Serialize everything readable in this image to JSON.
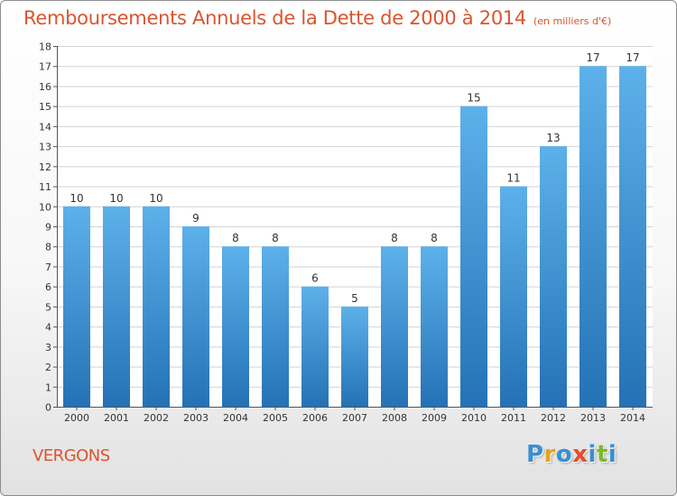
{
  "title": "Remboursements Annuels de la Dette de 2000 à 2014",
  "subtitle": "(en milliers d'€)",
  "commune": "VERGONS",
  "logo": {
    "text": "Proxiti",
    "letter_colors": [
      "#3a8fd0",
      "#e6a21e",
      "#3a8fd0",
      "#e84a2a",
      "#3a8fd0",
      "#7db928",
      "#3a8fd0"
    ]
  },
  "colors": {
    "bar_top": "#5db1ea",
    "bar_bottom": "#2472b5",
    "accent": "#d9552f",
    "grid": "#d2d2d2",
    "text": "#333333"
  },
  "chart_data": {
    "type": "bar",
    "title": "Remboursements Annuels de la Dette de 2000 à 2014",
    "subtitle": "(en milliers d'€)",
    "xlabel": "",
    "ylabel": "",
    "categories": [
      "2000",
      "2001",
      "2002",
      "2003",
      "2004",
      "2005",
      "2006",
      "2007",
      "2008",
      "2009",
      "2010",
      "2011",
      "2012",
      "2013",
      "2014"
    ],
    "values": [
      10,
      10,
      10,
      9,
      8,
      8,
      6,
      5,
      8,
      8,
      15,
      11,
      13,
      17,
      17
    ],
    "value_labels": [
      "10",
      "10",
      "10",
      "9",
      "8",
      "8",
      "6",
      "5",
      "8",
      "8",
      "15",
      "11",
      "13",
      "17",
      "17"
    ],
    "ylim": [
      0,
      18
    ],
    "yticks": [
      0,
      1,
      2,
      3,
      4,
      5,
      6,
      7,
      8,
      9,
      10,
      11,
      12,
      13,
      14,
      15,
      16,
      17,
      18
    ],
    "grid": true
  }
}
